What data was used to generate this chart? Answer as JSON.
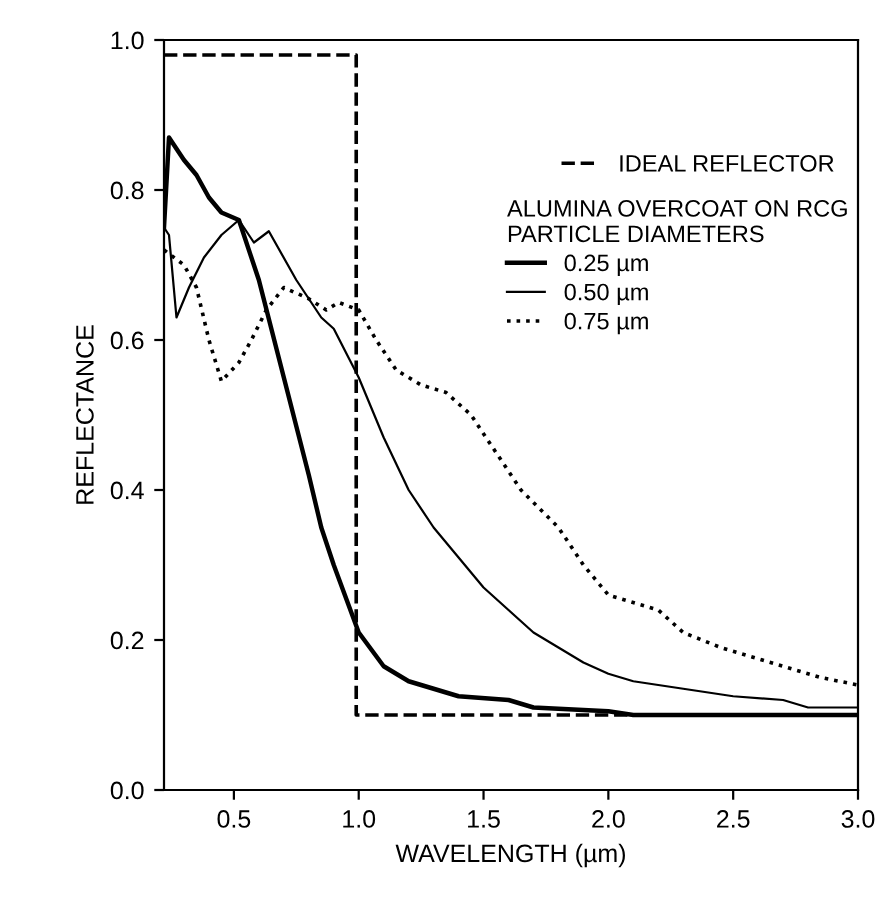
{
  "chart_data": {
    "type": "line",
    "xlabel": "WAVELENGTH (µm)",
    "ylabel": "REFLECTANCE",
    "legend_title": "ALUMINA OVERCOAT ON RCG\nPARTICLE DIAMETERS",
    "xlim": [
      0.22,
      3.0
    ],
    "ylim": [
      0.0,
      1.0
    ],
    "xticks": [
      0.5,
      {
        "value": 1,
        "label": "1.0"
      },
      1.5,
      {
        "value": 2,
        "label": "2.0"
      },
      2.5,
      {
        "value": 3,
        "label": "3.0"
      }
    ],
    "yticks": [
      {
        "value": 0,
        "label": "0.0"
      },
      0.2,
      0.4,
      0.6,
      0.8,
      {
        "value": 1,
        "label": "1.0"
      }
    ],
    "grid": false,
    "legend": "top right",
    "series": [
      {
        "name": "IDEAL REFLECTOR",
        "color": "#000000",
        "line_style": "dashed",
        "x": [
          0.22,
          0.99,
          0.99,
          3.0
        ],
        "values": [
          0.98,
          0.98,
          0.1,
          0.1
        ]
      },
      {
        "name": "0.25 µm",
        "color": "#000000",
        "line_style": "solid",
        "x": [
          0.22,
          0.24,
          0.3,
          0.35,
          0.4,
          0.45,
          0.52,
          0.6,
          0.7,
          0.8,
          0.85,
          0.9,
          1.0,
          1.1,
          1.2,
          1.3,
          1.4,
          1.6,
          1.7,
          2.0,
          2.1,
          3.0
        ],
        "values": [
          0.75,
          0.87,
          0.84,
          0.82,
          0.79,
          0.77,
          0.76,
          0.68,
          0.55,
          0.42,
          0.35,
          0.3,
          0.21,
          0.165,
          0.145,
          0.135,
          0.125,
          0.12,
          0.11,
          0.105,
          0.1,
          0.1
        ]
      },
      {
        "name": "0.50 µm",
        "color": "#000000",
        "line_style": "solid",
        "x": [
          0.22,
          0.24,
          0.27,
          0.32,
          0.38,
          0.45,
          0.52,
          0.58,
          0.64,
          0.75,
          0.85,
          0.9,
          1.0,
          1.1,
          1.2,
          1.3,
          1.4,
          1.5,
          1.6,
          1.7,
          1.8,
          1.9,
          2.0,
          2.1,
          2.3,
          2.5,
          2.7,
          2.8,
          3.0
        ],
        "values": [
          0.75,
          0.74,
          0.63,
          0.67,
          0.71,
          0.74,
          0.76,
          0.73,
          0.745,
          0.68,
          0.63,
          0.615,
          0.55,
          0.47,
          0.4,
          0.35,
          0.31,
          0.27,
          0.24,
          0.21,
          0.19,
          0.17,
          0.155,
          0.145,
          0.135,
          0.125,
          0.12,
          0.11,
          0.11
        ]
      },
      {
        "name": "0.75 µm",
        "color": "#000000",
        "line_style": "dotted",
        "x": [
          0.22,
          0.3,
          0.35,
          0.4,
          0.45,
          0.52,
          0.57,
          0.63,
          0.7,
          0.8,
          0.87,
          0.92,
          1.0,
          1.07,
          1.15,
          1.25,
          1.35,
          1.45,
          1.55,
          1.65,
          1.8,
          1.9,
          2.0,
          2.2,
          2.3,
          2.45,
          2.6,
          2.75,
          2.85,
          3.0
        ],
        "values": [
          0.72,
          0.7,
          0.67,
          0.6,
          0.545,
          0.57,
          0.6,
          0.64,
          0.67,
          0.655,
          0.64,
          0.65,
          0.64,
          0.6,
          0.56,
          0.54,
          0.53,
          0.5,
          0.45,
          0.4,
          0.35,
          0.3,
          0.26,
          0.24,
          0.21,
          0.19,
          0.175,
          0.16,
          0.15,
          0.14
        ]
      }
    ]
  }
}
